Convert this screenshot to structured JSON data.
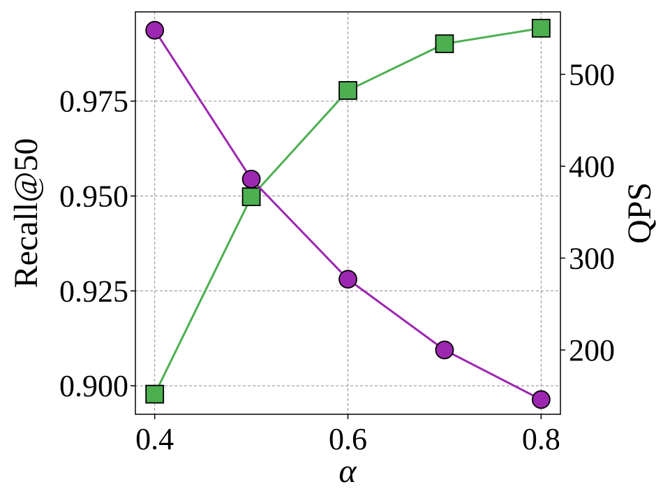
{
  "chart_data": {
    "type": "line",
    "xlabel": "α",
    "ylabel_left": "Recall@50",
    "ylabel_right": "QPS",
    "x": [
      0.4,
      0.5,
      0.6,
      0.7,
      0.8
    ],
    "xlim": [
      0.38,
      0.82
    ],
    "xticks": [
      0.4,
      0.6,
      0.8
    ],
    "xtick_labels": [
      "0.4",
      "0.6",
      "0.8"
    ],
    "ylim_left": [
      0.8925,
      0.9985
    ],
    "yticks_left": [
      0.9,
      0.925,
      0.95,
      0.975
    ],
    "ytick_labels_left": [
      "0.900",
      "0.925",
      "0.950",
      "0.975"
    ],
    "ylim_right": [
      130,
      568
    ],
    "yticks_right": [
      200,
      300,
      400,
      500
    ],
    "ytick_labels_right": [
      "200",
      "300",
      "400",
      "500"
    ],
    "grid": true,
    "series": [
      {
        "axis": "left",
        "marker": "square",
        "color": "#4caf50",
        "values": [
          0.8978,
          0.9498,
          0.9778,
          0.9901,
          0.9942
        ]
      },
      {
        "axis": "right",
        "marker": "circle",
        "color": "#9c27b0",
        "values": [
          548,
          386,
          277,
          200,
          146
        ]
      }
    ]
  }
}
